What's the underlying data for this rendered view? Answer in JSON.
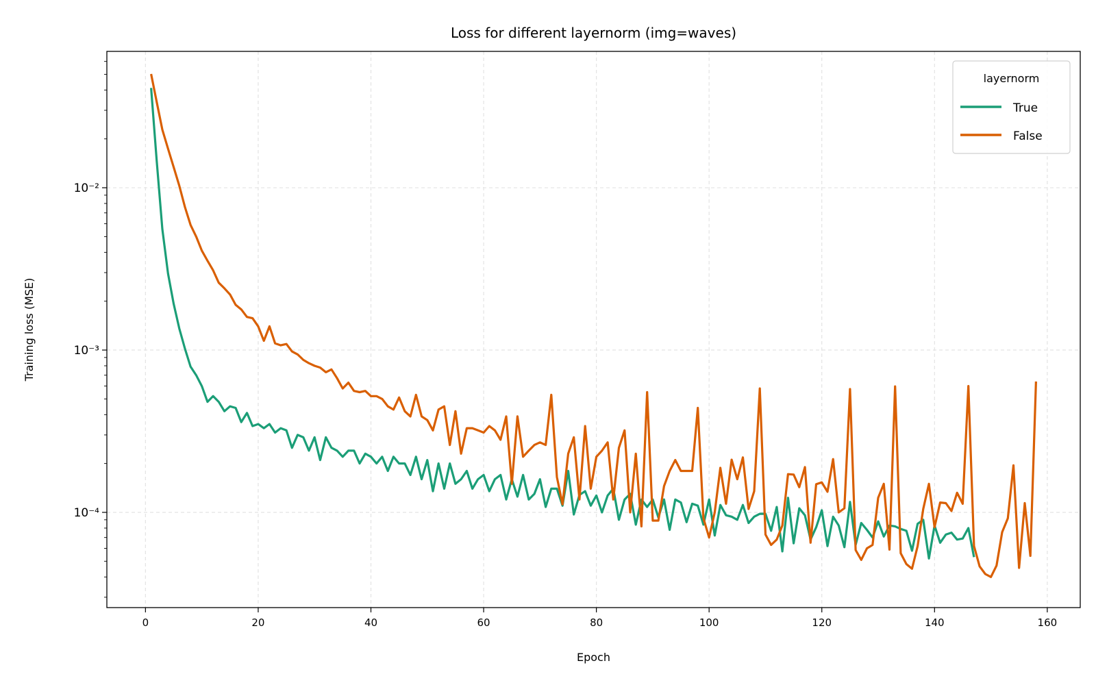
{
  "chart_data": {
    "type": "line",
    "title": "Loss for different layernorm (img=waves)",
    "xlabel": "Epoch",
    "ylabel": "Training loss (MSE)",
    "yscale": "log",
    "xlim": [
      -6.85,
      165.85
    ],
    "ylim": [
      2.59e-05,
      0.0692
    ],
    "grid": true,
    "x_ticks": [
      0,
      20,
      40,
      60,
      80,
      100,
      120,
      140,
      160
    ],
    "x_tick_labels": [
      "0",
      "20",
      "40",
      "60",
      "80",
      "100",
      "120",
      "140",
      "160"
    ],
    "y_ticks": [
      0.0001,
      0.001,
      0.01
    ],
    "y_tick_labels": [
      "10⁻⁴",
      "10⁻³",
      "10⁻²"
    ],
    "legend": {
      "title": "layernorm",
      "placement": "top-right"
    },
    "epoch_start": 1,
    "series": [
      {
        "name": "True",
        "color": "#1b9e77",
        "values": [
          0.0412,
          0.0146,
          0.00556,
          0.00296,
          0.00193,
          0.00136,
          0.00102,
          0.00079,
          0.0007,
          0.0006,
          0.00048,
          0.00052,
          0.00048,
          0.00042,
          0.00045,
          0.00044,
          0.00036,
          0.00041,
          0.00034,
          0.00035,
          0.00033,
          0.00035,
          0.00031,
          0.00033,
          0.00032,
          0.00025,
          0.0003,
          0.00029,
          0.00024,
          0.00029,
          0.00021,
          0.00029,
          0.00025,
          0.00024,
          0.00022,
          0.00024,
          0.00024,
          0.0002,
          0.00023,
          0.00022,
          0.0002,
          0.00022,
          0.00018,
          0.00022,
          0.0002,
          0.0002,
          0.00017,
          0.00022,
          0.00016,
          0.00021,
          0.000135,
          0.0002,
          0.00014,
          0.0002,
          0.00015,
          0.00016,
          0.00018,
          0.00014,
          0.00016,
          0.00017,
          0.000135,
          0.00016,
          0.00017,
          0.00012,
          0.00016,
          0.000125,
          0.00017,
          0.00012,
          0.00013,
          0.00016,
          0.000108,
          0.00014,
          0.00014,
          0.00011,
          0.00018,
          9.7e-05,
          0.000128,
          0.000135,
          0.00011,
          0.000127,
          0.0001,
          0.000127,
          0.00014,
          9e-05,
          0.00012,
          0.00013,
          8.4e-05,
          0.00012,
          0.000108,
          0.00012,
          9.3e-05,
          0.00012,
          7.8e-05,
          0.00012,
          0.000115,
          8.7e-05,
          0.000113,
          0.00011,
          8.4e-05,
          0.00012,
          7.2e-05,
          0.000111,
          9.6e-05,
          9.4e-05,
          9e-05,
          0.000111,
          8.6e-05,
          9.4e-05,
          9.8e-05,
          9.8e-05,
          7.7e-05,
          0.000108,
          5.75e-05,
          0.000123,
          6.45e-05,
          0.000106,
          9.6e-05,
          6.8e-05,
          8.1e-05,
          0.000103,
          6.2e-05,
          9.4e-05,
          8.3e-05,
          6.1e-05,
          0.000116,
          6.3e-05,
          8.6e-05,
          7.8e-05,
          7e-05,
          8.8e-05,
          7.1e-05,
          8.3e-05,
          8.2e-05,
          7.9e-05,
          7.7e-05,
          5.8e-05,
          8.5e-05,
          9e-05,
          5.2e-05,
          8.3e-05,
          6.5e-05,
          7.3e-05,
          7.5e-05,
          6.8e-05,
          6.9e-05,
          8e-05,
          5.3e-05
        ]
      },
      {
        "name": "False",
        "color": "#d95f02",
        "values": [
          0.0502,
          0.0337,
          0.0228,
          0.0174,
          0.0134,
          0.0103,
          0.0076,
          0.0059,
          0.005,
          0.0041,
          0.00355,
          0.0031,
          0.0026,
          0.0024,
          0.0022,
          0.0019,
          0.00178,
          0.0016,
          0.00157,
          0.0014,
          0.00114,
          0.0014,
          0.0011,
          0.00107,
          0.00109,
          0.00098,
          0.00094,
          0.00087,
          0.00083,
          0.0008,
          0.00078,
          0.00073,
          0.00076,
          0.00067,
          0.00058,
          0.00063,
          0.00056,
          0.00055,
          0.00056,
          0.00052,
          0.00052,
          0.0005,
          0.00045,
          0.00043,
          0.00051,
          0.00042,
          0.00039,
          0.00053,
          0.00039,
          0.00037,
          0.00032,
          0.00043,
          0.00045,
          0.00026,
          0.00042,
          0.00023,
          0.00033,
          0.00033,
          0.00032,
          0.00031,
          0.00034,
          0.00032,
          0.00028,
          0.00039,
          0.00015,
          0.00039,
          0.00022,
          0.00024,
          0.00026,
          0.00027,
          0.00026,
          0.00053,
          0.000165,
          0.000112,
          0.00023,
          0.00029,
          0.00012,
          0.00034,
          0.00014,
          0.00022,
          0.00024,
          0.00027,
          0.00012,
          0.00025,
          0.00032,
          0.0001,
          0.00023,
          8.2e-05,
          0.00055,
          8.9e-05,
          8.9e-05,
          0.000145,
          0.00018,
          0.00021,
          0.00018,
          0.00018,
          0.00018,
          0.00044,
          9.2e-05,
          7e-05,
          0.0001,
          0.000188,
          0.000113,
          0.000211,
          0.00016,
          0.000218,
          0.000105,
          0.000135,
          0.00058,
          7.3e-05,
          6.3e-05,
          6.8e-05,
          8.3e-05,
          0.000172,
          0.000171,
          0.000143,
          0.00019,
          6.5e-05,
          0.000149,
          0.000153,
          0.000134,
          0.000213,
          0.0001,
          0.000106,
          0.000575,
          5.86e-05,
          5.1e-05,
          6e-05,
          6.3e-05,
          0.000123,
          0.00015,
          5.9e-05,
          0.000597,
          5.6e-05,
          4.8e-05,
          4.5e-05,
          6.2e-05,
          0.000105,
          0.00015,
          8.1e-05,
          0.000115,
          0.000114,
          0.000102,
          0.000132,
          0.000113,
          0.0006,
          6.2e-05,
          4.65e-05,
          4.17e-05,
          4e-05,
          4.7e-05,
          7.55e-05,
          9.2e-05,
          0.000195,
          4.55e-05,
          0.000114,
          5.4e-05,
          0.00064
        ]
      }
    ]
  }
}
